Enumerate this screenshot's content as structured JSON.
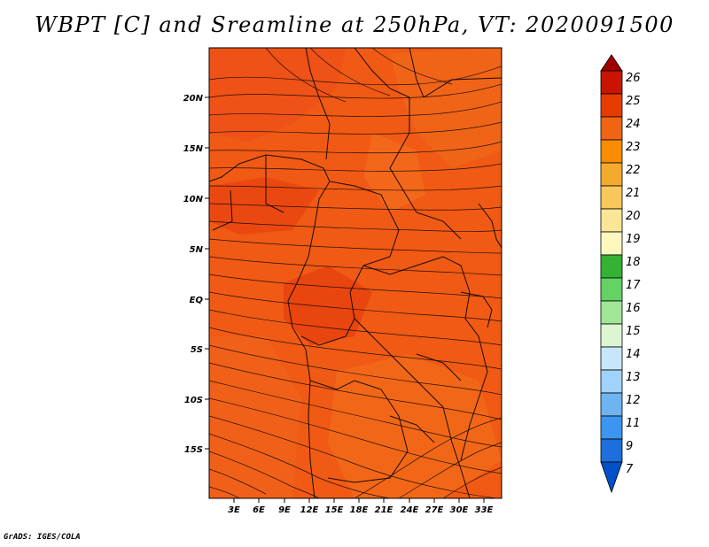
{
  "title": "WBPT [C] and Sreamline at 250hPa, VT: 2020091500",
  "credit": "GrADS: IGES/COLA",
  "map": {
    "lat_labels": [
      "20N",
      "15N",
      "10N",
      "5N",
      "EQ",
      "5S",
      "10S",
      "15S"
    ],
    "lon_labels": [
      "3E",
      "6E",
      "9E",
      "12E",
      "15E",
      "18E",
      "21E",
      "24E",
      "27E",
      "30E",
      "33E"
    ],
    "base_color": "#f05a14"
  },
  "colorbar": {
    "labels": [
      "26",
      "25",
      "24",
      "23",
      "22",
      "21",
      "20",
      "19",
      "18",
      "17",
      "16",
      "15",
      "14",
      "13",
      "12",
      "11",
      "9",
      "7"
    ],
    "colors": [
      "#a00000",
      "#c81400",
      "#e63c00",
      "#f06414",
      "#fa8c00",
      "#f4aa2c",
      "#fac85a",
      "#fae696",
      "#fff7be",
      "#34b234",
      "#64d264",
      "#a0e696",
      "#dcf5d2",
      "#c8e6fa",
      "#a0d2fa",
      "#6eb4f0",
      "#3c96f0",
      "#1e6edc",
      "#0050c8"
    ]
  }
}
